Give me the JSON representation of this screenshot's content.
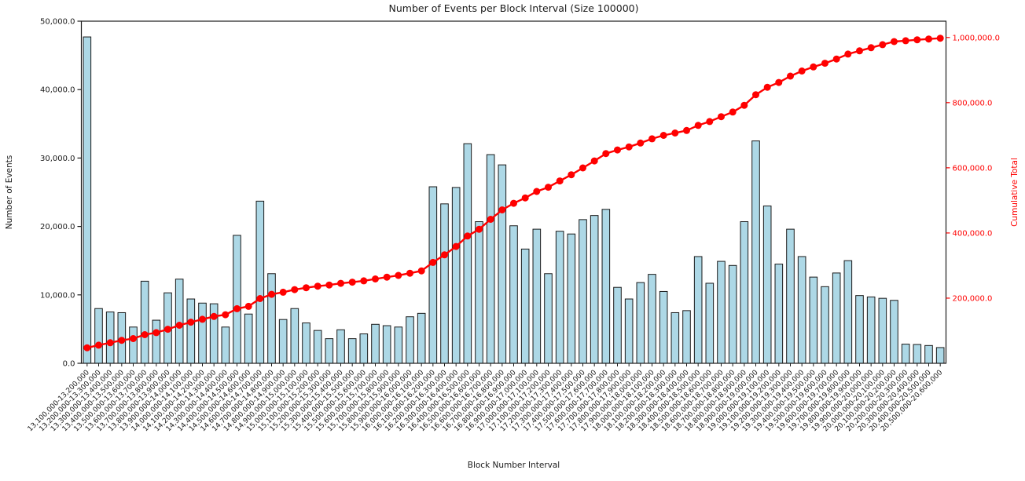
{
  "chart_data": {
    "type": "bar",
    "title": "Number of Events per Block Interval (Size 100000)",
    "xlabel": "Block Number Interval",
    "ylabel": "Number of Events",
    "ylabel_right": "Cumulative Total",
    "grid": false,
    "legend": "none",
    "bar_color": "#add8e6",
    "bar_edge_color": "#1a1a1a",
    "line_color": "#ff0000",
    "marker": "circle",
    "left_axis": {
      "lim": [
        0,
        50000
      ],
      "ticks": [
        0,
        10000,
        20000,
        30000,
        40000,
        50000
      ],
      "tick_labels": [
        "0.0",
        "10,000.0",
        "20,000.0",
        "30,000.0",
        "40,000.0",
        "50,000.0"
      ]
    },
    "right_axis": {
      "lim": [
        0,
        1050000
      ],
      "ticks": [
        200000,
        400000,
        600000,
        800000,
        1000000
      ],
      "tick_labels": [
        "200,000.0",
        "400,000.0",
        "600,000.0",
        "800,000.0",
        "1,000,000.0"
      ],
      "color": "#ff0000"
    },
    "categories": [
      "13,100,000-13,200,000",
      "13,200,000-13,300,000",
      "13,300,000-13,400,000",
      "13,400,000-13,500,000",
      "13,500,000-13,600,000",
      "13,600,000-13,700,000",
      "13,700,000-13,800,000",
      "13,800,000-13,900,000",
      "13,900,000-14,000,000",
      "14,000,000-14,100,000",
      "14,100,000-14,200,000",
      "14,200,000-14,300,000",
      "14,300,000-14,400,000",
      "14,400,000-14,500,000",
      "14,500,000-14,600,000",
      "14,600,000-14,700,000",
      "14,700,000-14,800,000",
      "14,800,000-14,900,000",
      "14,900,000-15,000,000",
      "15,000,000-15,100,000",
      "15,100,000-15,200,000",
      "15,200,000-15,300,000",
      "15,300,000-15,400,000",
      "15,400,000-15,500,000",
      "15,500,000-15,600,000",
      "15,600,000-15,700,000",
      "15,700,000-15,800,000",
      "15,800,000-15,900,000",
      "15,900,000-16,000,000",
      "16,000,000-16,100,000",
      "16,100,000-16,200,000",
      "16,200,000-16,300,000",
      "16,300,000-16,400,000",
      "16,400,000-16,500,000",
      "16,500,000-16,600,000",
      "16,600,000-16,700,000",
      "16,700,000-16,800,000",
      "16,800,000-16,900,000",
      "16,900,000-17,000,000",
      "17,000,000-17,100,000",
      "17,100,000-17,200,000",
      "17,200,000-17,300,000",
      "17,300,000-17,400,000",
      "17,400,000-17,500,000",
      "17,500,000-17,600,000",
      "17,600,000-17,700,000",
      "17,700,000-17,800,000",
      "17,800,000-17,900,000",
      "17,900,000-18,000,000",
      "18,000,000-18,100,000",
      "18,100,000-18,200,000",
      "18,200,000-18,300,000",
      "18,300,000-18,400,000",
      "18,400,000-18,500,000",
      "18,500,000-18,600,000",
      "18,600,000-18,700,000",
      "18,700,000-18,800,000",
      "18,800,000-18,900,000",
      "18,900,000-19,000,000",
      "19,000,000-19,100,000",
      "19,100,000-19,200,000",
      "19,200,000-19,300,000",
      "19,300,000-19,400,000",
      "19,400,000-19,500,000",
      "19,500,000-19,600,000",
      "19,600,000-19,700,000",
      "19,700,000-19,800,000",
      "19,800,000-19,900,000",
      "19,900,000-20,000,000",
      "20,000,000-20,100,000",
      "20,100,000-20,200,000",
      "20,200,000-20,300,000",
      "20,300,000-20,400,000",
      "20,400,000-20,500,000",
      "20,500,000-20,600,000"
    ],
    "series": [
      {
        "name": "Number of Events",
        "type": "bar",
        "axis": "left",
        "values": [
          47700,
          8000,
          7500,
          7400,
          5300,
          12000,
          6300,
          10300,
          12300,
          9400,
          8800,
          8700,
          5300,
          18700,
          7200,
          23700,
          13100,
          6400,
          8000,
          5900,
          4800,
          3600,
          4900,
          3600,
          4300,
          5700,
          5500,
          5300,
          6800,
          7300,
          25800,
          23300,
          25700,
          32100,
          20700,
          30500,
          29000,
          20100,
          16700,
          19600,
          13100,
          19300,
          18900,
          21000,
          21600,
          22500,
          11100,
          9400,
          11800,
          13000,
          10500,
          7400,
          7700,
          15600,
          11700,
          14900,
          14300,
          20700,
          32500,
          23000,
          14500,
          19600,
          15600,
          12600,
          11200,
          13200,
          15000,
          9900,
          9700,
          9500,
          9200,
          2800,
          2750,
          2600,
          2300
        ]
      },
      {
        "name": "Cumulative Total",
        "type": "line",
        "axis": "right",
        "values": [
          47700,
          55700,
          63200,
          70600,
          75900,
          87900,
          94200,
          104500,
          116800,
          126200,
          135000,
          143700,
          149000,
          167700,
          174900,
          198600,
          211700,
          218100,
          226100,
          232000,
          236800,
          240400,
          245300,
          248900,
          253200,
          258900,
          264400,
          269700,
          276500,
          283800,
          309600,
          332900,
          358600,
          390700,
          411400,
          441900,
          470900,
          491000,
          507700,
          527300,
          540400,
          559700,
          578600,
          599600,
          621200,
          643700,
          654800,
          664200,
          676000,
          689000,
          699500,
          706900,
          714600,
          730200,
          741900,
          756800,
          771100,
          791800,
          824300,
          847300,
          861800,
          881400,
          897000,
          909600,
          920800,
          934000,
          949000,
          958900,
          968600,
          978100,
          987300,
          990100,
          992850,
          995450,
          997750
        ]
      }
    ]
  }
}
